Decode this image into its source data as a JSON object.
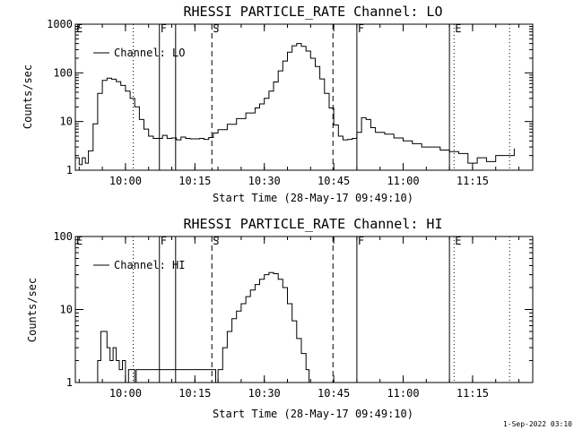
{
  "footer": "1-Sep-2022 03:10",
  "chart_data": [
    {
      "type": "line",
      "title": "RHESSI PARTICLE_RATE Channel: LO",
      "ylabel": "Counts/sec",
      "xlabel": "Start Time (28-May-17 09:49:10)",
      "yscale": "log",
      "ylim": [
        1,
        1000
      ],
      "yticks": [
        1,
        10,
        100,
        1000
      ],
      "ytick_labels": [
        "1",
        "10",
        "100",
        "1000"
      ],
      "xlim": [
        "09:49:10",
        "11:28:00"
      ],
      "xticks": [
        "10:00",
        "10:15",
        "10:30",
        "10:45",
        "11:00",
        "11:15"
      ],
      "legend": {
        "label": "Channel: LO",
        "position": "top-left"
      },
      "markers": [
        {
          "time": "10:07:20",
          "label": "F",
          "style": "solid"
        },
        {
          "time": "10:10:50",
          "label": "",
          "style": "solid"
        },
        {
          "time": "10:18:40",
          "label": "S",
          "style": "dashed"
        },
        {
          "time": "10:44:50",
          "label": "",
          "style": "dashed"
        },
        {
          "time": "10:50:00",
          "label": "F",
          "style": "solid"
        },
        {
          "time": "11:10:00",
          "label": "",
          "style": "solid"
        },
        {
          "time": "11:11:00",
          "label": "E",
          "style": "dotted"
        },
        {
          "time": "10:01:40",
          "label": "",
          "style": "dotted"
        },
        {
          "time": "11:23:00",
          "label": "",
          "style": "dotted"
        }
      ],
      "edge_label": "E",
      "series": [
        {
          "x": [
            "09:49:10",
            "09:50:00",
            "09:50:40",
            "09:51:20",
            "09:52:00",
            "09:53:00",
            "09:54:00",
            "09:55:00",
            "09:56:00",
            "09:57:00",
            "09:58:00",
            "09:59:00",
            "10:00:00",
            "10:01:00",
            "10:02:00",
            "10:03:00",
            "10:04:00",
            "10:05:00",
            "10:06:00",
            "10:07:00",
            "10:08:00",
            "10:09:00",
            "10:10:00",
            "10:11:00",
            "10:12:00",
            "10:13:00",
            "10:14:00",
            "10:15:00",
            "10:16:00",
            "10:17:00",
            "10:18:00",
            "10:19:00",
            "10:20:00",
            "10:22:00",
            "10:24:00",
            "10:26:00",
            "10:28:00",
            "10:29:00",
            "10:30:00",
            "10:31:00",
            "10:32:00",
            "10:33:00",
            "10:34:00",
            "10:35:00",
            "10:36:00",
            "10:37:00",
            "10:38:00",
            "10:39:00",
            "10:40:00",
            "10:41:00",
            "10:42:00",
            "10:43:00",
            "10:44:00",
            "10:45:00",
            "10:46:00",
            "10:47:00",
            "10:48:00",
            "10:49:00",
            "10:50:00",
            "10:51:00",
            "10:52:00",
            "10:53:00",
            "10:54:00",
            "10:56:00",
            "10:58:00",
            "11:00:00",
            "11:02:00",
            "11:04:00",
            "11:06:00",
            "11:08:00",
            "11:10:00",
            "11:12:00",
            "11:14:00",
            "11:16:00",
            "11:18:00",
            "11:20:00",
            "11:22:00",
            "11:23:00",
            "11:24:00"
          ],
          "y": [
            1.8,
            1.3,
            1.8,
            1.4,
            2.5,
            9,
            38,
            70,
            78,
            74,
            66,
            55,
            42,
            30,
            20,
            11,
            7,
            5,
            4.5,
            4.5,
            5.2,
            4.5,
            4.6,
            4.2,
            4.8,
            4.5,
            4.4,
            4.4,
            4.5,
            4.3,
            4.7,
            5.8,
            6.8,
            8.8,
            11.5,
            15,
            19,
            23,
            30,
            42,
            65,
            110,
            175,
            265,
            360,
            400,
            350,
            280,
            200,
            135,
            75,
            38,
            19,
            8.5,
            5,
            4.2,
            4.3,
            4.5,
            6,
            12,
            11,
            7.5,
            6,
            5.5,
            4.6,
            4,
            3.5,
            3,
            3,
            2.6,
            2.4,
            2.2,
            1.4,
            1.8,
            1.5,
            2,
            2,
            2,
            2.8
          ]
        }
      ]
    },
    {
      "type": "line",
      "title": "RHESSI PARTICLE_RATE Channel: HI",
      "ylabel": "Counts/sec",
      "xlabel": "Start Time (28-May-17 09:49:10)",
      "yscale": "log",
      "ylim": [
        1,
        100
      ],
      "yticks": [
        1,
        10,
        100
      ],
      "ytick_labels": [
        "1",
        "10",
        "100"
      ],
      "xlim": [
        "09:49:10",
        "11:28:00"
      ],
      "xticks": [
        "10:00",
        "10:15",
        "10:30",
        "10:45",
        "11:00",
        "11:15"
      ],
      "legend": {
        "label": "Channel: HI",
        "position": "top-left"
      },
      "markers": [
        {
          "time": "10:07:20",
          "label": "F",
          "style": "solid"
        },
        {
          "time": "10:10:50",
          "label": "",
          "style": "solid"
        },
        {
          "time": "10:18:40",
          "label": "S",
          "style": "dashed"
        },
        {
          "time": "10:44:50",
          "label": "",
          "style": "dashed"
        },
        {
          "time": "10:50:00",
          "label": "F",
          "style": "solid"
        },
        {
          "time": "11:10:00",
          "label": "",
          "style": "solid"
        },
        {
          "time": "11:11:00",
          "label": "E",
          "style": "dotted"
        },
        {
          "time": "10:01:40",
          "label": "",
          "style": "dotted"
        },
        {
          "time": "11:23:00",
          "label": "",
          "style": "dotted"
        }
      ],
      "edge_label": "E",
      "series": [
        {
          "x": [
            "09:53:20",
            "09:54:00",
            "09:54:40",
            "09:55:20",
            "09:56:00",
            "09:56:40",
            "09:57:20",
            "09:58:00",
            "09:58:40",
            "09:59:20",
            "10:00:00",
            "10:00:40",
            "10:01:20",
            "10:02:00",
            "10:02:20",
            "10:19:30",
            "10:20:00",
            "10:21:00",
            "10:22:00",
            "10:23:00",
            "10:24:00",
            "10:25:00",
            "10:26:00",
            "10:27:00",
            "10:28:00",
            "10:29:00",
            "10:30:00",
            "10:31:00",
            "10:32:00",
            "10:33:00",
            "10:34:00",
            "10:35:00",
            "10:36:00",
            "10:37:00",
            "10:38:00",
            "10:39:00",
            "10:39:40"
          ],
          "y": [
            1,
            2,
            5,
            5,
            3,
            2,
            3,
            2,
            1.5,
            2,
            1,
            1.5,
            1.5,
            1,
            1.5,
            1,
            1.5,
            3,
            5,
            7.5,
            9.5,
            12,
            15,
            18.5,
            22,
            26,
            30,
            32,
            31,
            26,
            20,
            12,
            7,
            4,
            2.5,
            1.5,
            1
          ]
        }
      ]
    }
  ]
}
